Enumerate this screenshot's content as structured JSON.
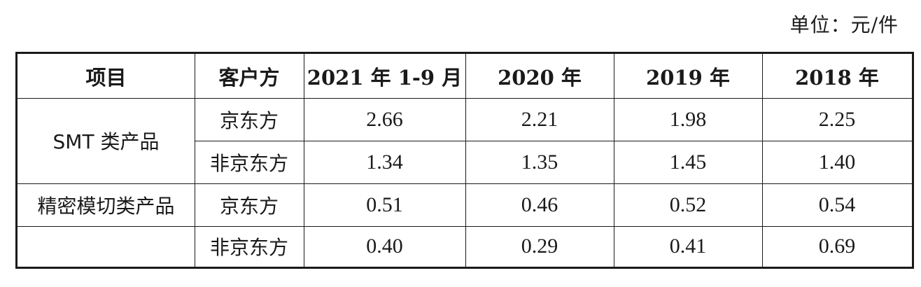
{
  "unit_label": "单位：元/件",
  "table": {
    "headers": [
      "项目",
      "客户方",
      "2021 年 1-9 月",
      "2020 年",
      "2019 年",
      "2018 年"
    ],
    "groups": [
      {
        "name": "SMT 类产品",
        "rows": [
          {
            "customer": "京东方",
            "values": [
              "2.66",
              "2.21",
              "1.98",
              "2.25"
            ]
          },
          {
            "customer": "非京东方",
            "values": [
              "1.34",
              "1.35",
              "1.45",
              "1.40"
            ]
          }
        ]
      },
      {
        "name": "精密模切类产品",
        "rows": [
          {
            "customer": "京东方",
            "values": [
              "0.51",
              "0.46",
              "0.52",
              "0.54"
            ]
          },
          {
            "customer": "非京东方",
            "values": [
              "0.40",
              "0.29",
              "0.41",
              "0.69"
            ]
          }
        ]
      }
    ]
  }
}
